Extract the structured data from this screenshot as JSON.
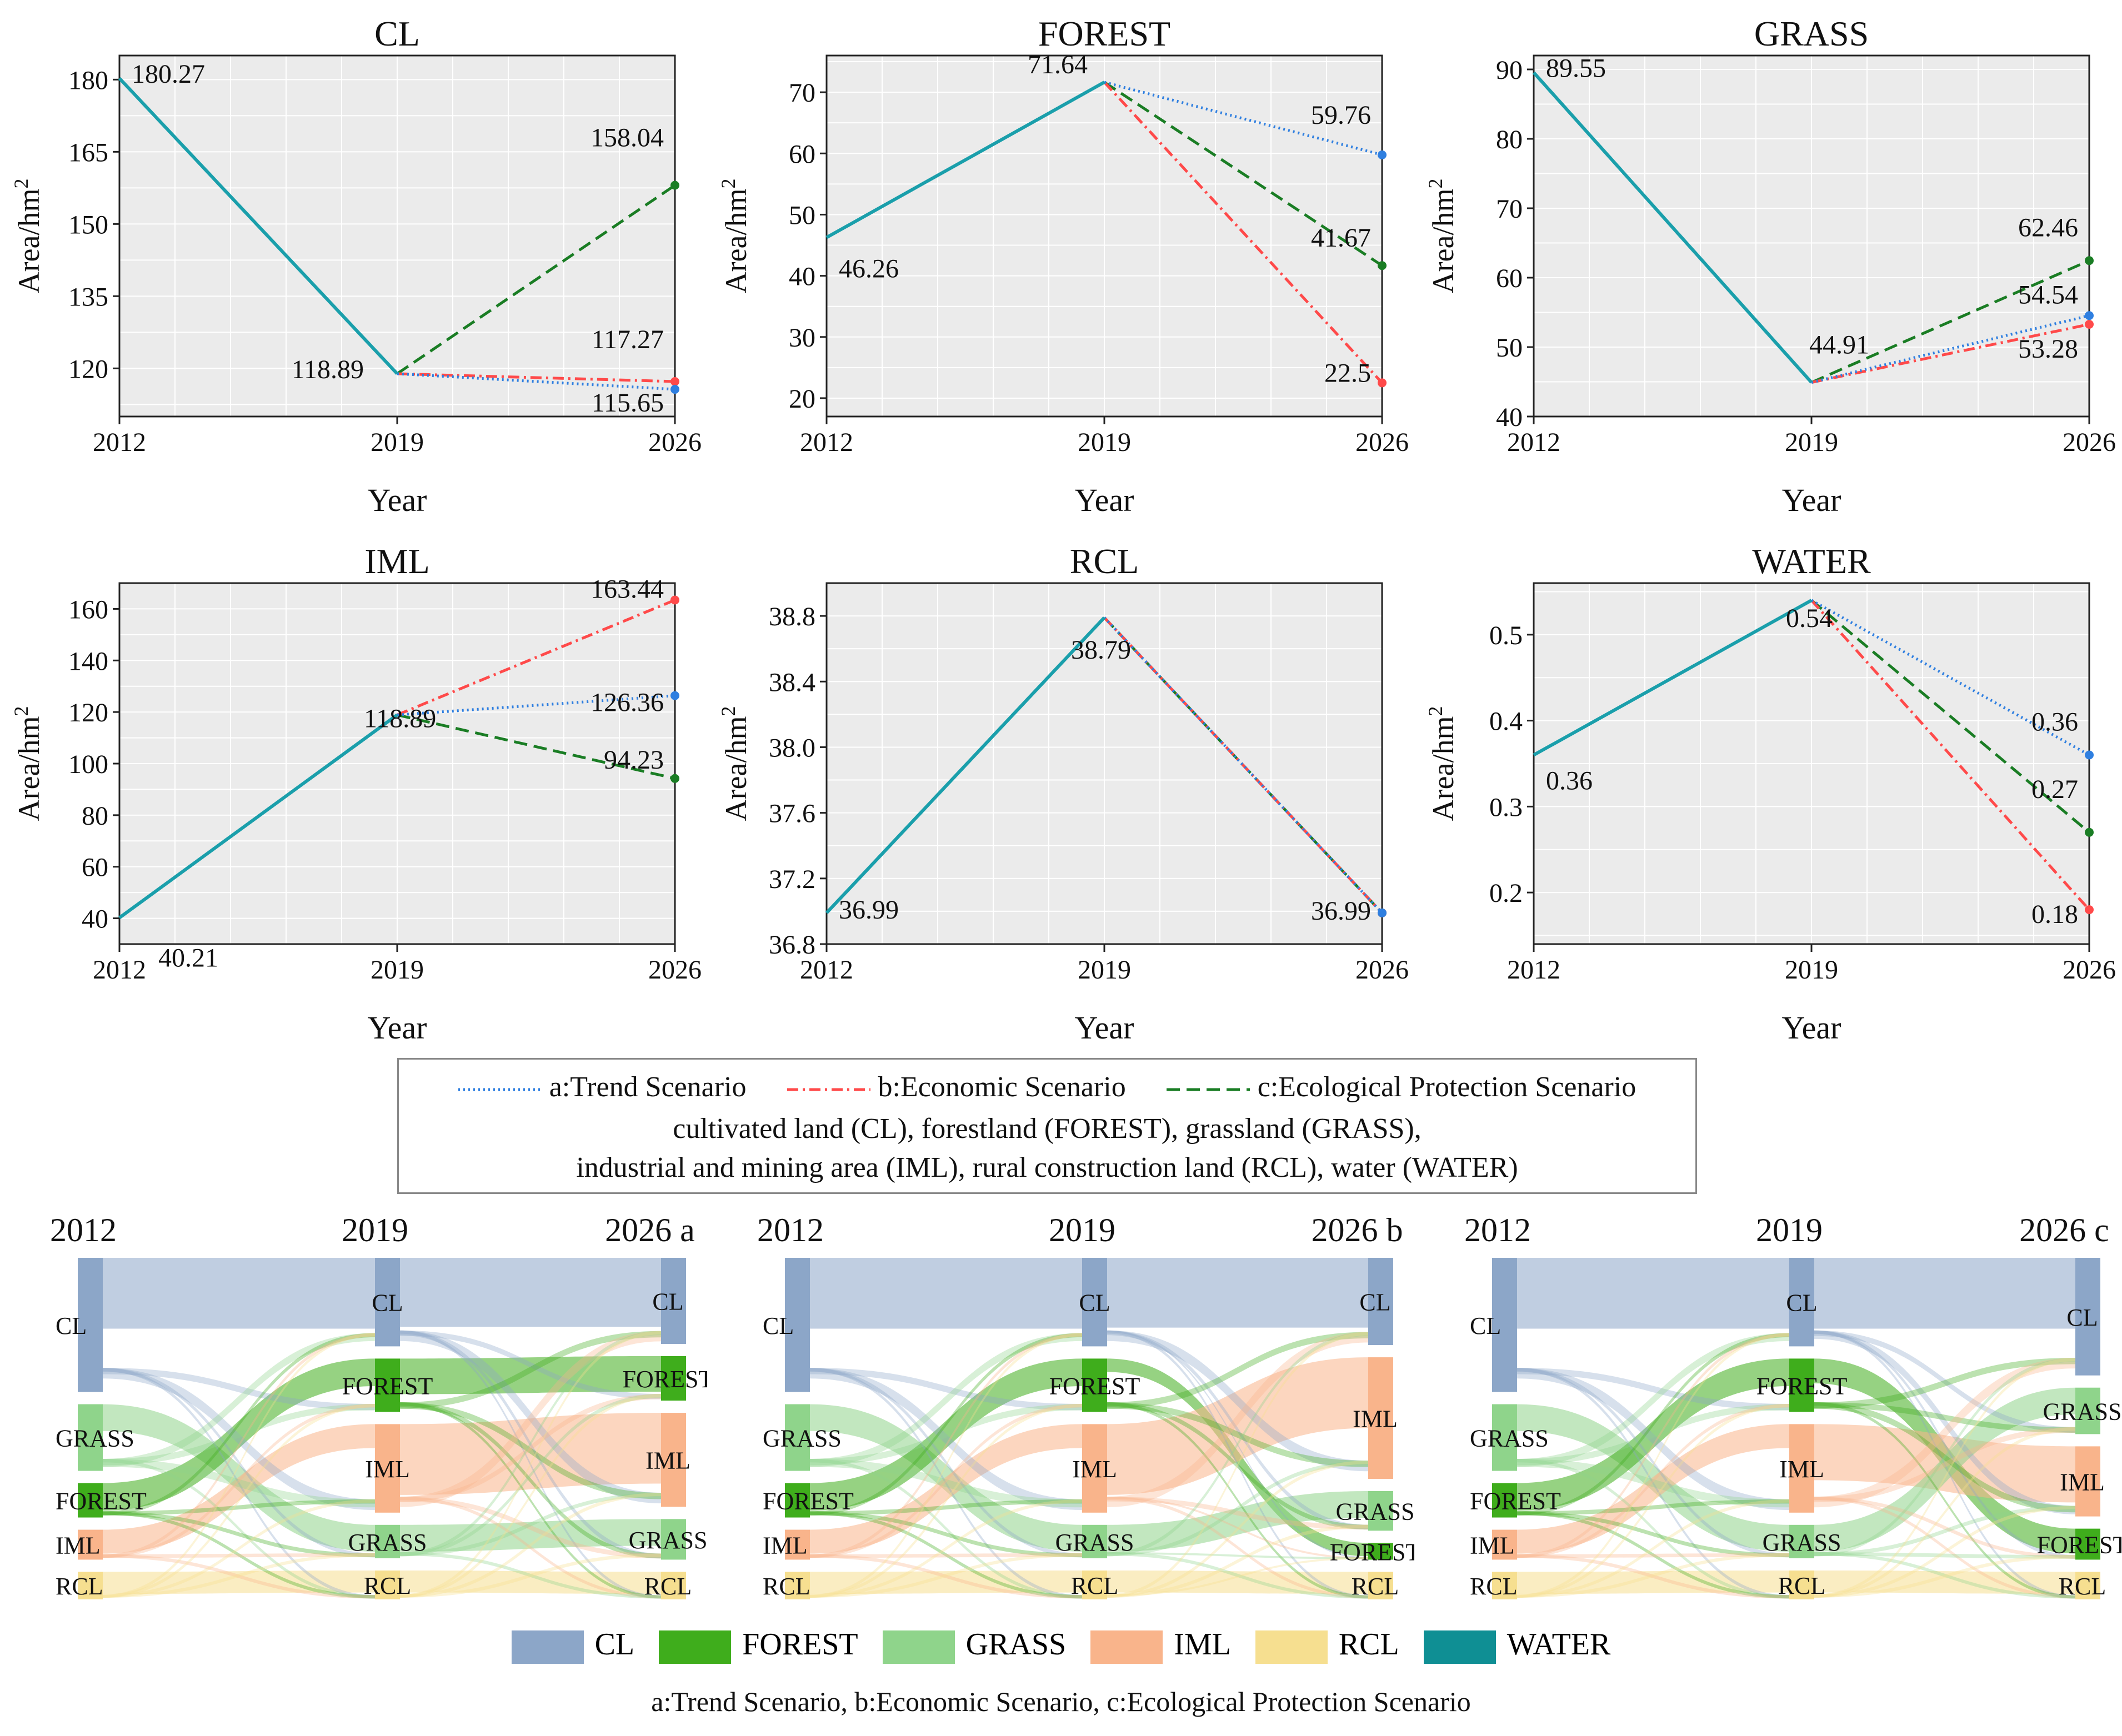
{
  "chart_data": [
    {
      "type": "line",
      "title": "CL",
      "xlabel": "Year",
      "ylabel": "Area/hm²",
      "ylabel_base": "Area/hm",
      "ylabel_sup": "2",
      "x": [
        "2012",
        "2019",
        "2026"
      ],
      "ylim": [
        110,
        185
      ],
      "yticks": [
        120,
        135,
        150,
        165,
        180
      ],
      "ytick_labels": [
        "120",
        "135",
        "150",
        "165",
        "180"
      ],
      "base": [
        180.27,
        118.89
      ],
      "scenarios": {
        "a": 115.65,
        "b": 117.27,
        "c": 158.04
      },
      "labels": [
        {
          "text": "180.27",
          "pt": 0
        },
        {
          "text": "118.89",
          "pt": 1
        },
        {
          "text": "158.04",
          "pt": "c"
        },
        {
          "text": "117.27",
          "pt": "b"
        },
        {
          "text": "115.65",
          "pt": "a"
        }
      ]
    },
    {
      "type": "line",
      "title": "FOREST",
      "xlabel": "Year",
      "ylabel": "Area/hm²",
      "ylabel_base": "Area/hm",
      "ylabel_sup": "2",
      "x": [
        "2012",
        "2019",
        "2026"
      ],
      "ylim": [
        17,
        76
      ],
      "yticks": [
        20,
        30,
        40,
        50,
        60,
        70
      ],
      "ytick_labels": [
        "20",
        "30",
        "40",
        "50",
        "60",
        "70"
      ],
      "base": [
        46.26,
        71.64
      ],
      "scenarios": {
        "a": 59.76,
        "b": 22.5,
        "c": 41.67
      },
      "labels": [
        {
          "text": "46.26",
          "pt": 0
        },
        {
          "text": "71.64",
          "pt": 1
        },
        {
          "text": "59.76",
          "pt": "a"
        },
        {
          "text": "41.67",
          "pt": "c"
        },
        {
          "text": "22.5",
          "pt": "b"
        }
      ]
    },
    {
      "type": "line",
      "title": "GRASS",
      "xlabel": "Year",
      "ylabel": "Area/hm²",
      "ylabel_base": "Area/hm",
      "ylabel_sup": "2",
      "x": [
        "2012",
        "2019",
        "2026"
      ],
      "ylim": [
        40,
        92
      ],
      "yticks": [
        40,
        50,
        60,
        70,
        80,
        90
      ],
      "ytick_labels": [
        "40",
        "50",
        "60",
        "70",
        "80",
        "90"
      ],
      "base": [
        89.55,
        44.91
      ],
      "scenarios": {
        "a": 54.54,
        "b": 53.28,
        "c": 62.46
      },
      "labels": [
        {
          "text": "89.55",
          "pt": 0
        },
        {
          "text": "44.91",
          "pt": 1
        },
        {
          "text": "62.46",
          "pt": "c"
        },
        {
          "text": "54.54",
          "pt": "a"
        },
        {
          "text": "53.28",
          "pt": "b"
        }
      ]
    },
    {
      "type": "line",
      "title": "IML",
      "xlabel": "Year",
      "ylabel": "Area/hm²",
      "ylabel_base": "Area/hm",
      "ylabel_sup": "2",
      "x": [
        "2012",
        "2019",
        "2026"
      ],
      "ylim": [
        30,
        170
      ],
      "yticks": [
        40,
        60,
        80,
        100,
        120,
        140,
        160
      ],
      "ytick_labels": [
        "40",
        "60",
        "80",
        "100",
        "120",
        "140",
        "160"
      ],
      "base": [
        40.21,
        118.89
      ],
      "scenarios": {
        "a": 126.36,
        "b": 163.44,
        "c": 94.23
      },
      "labels": [
        {
          "text": "40.21",
          "pt": 0
        },
        {
          "text": "118.89",
          "pt": 1
        },
        {
          "text": "163.44",
          "pt": "b"
        },
        {
          "text": "126.36",
          "pt": "a"
        },
        {
          "text": "94.23",
          "pt": "c"
        }
      ]
    },
    {
      "type": "line",
      "title": "RCL",
      "xlabel": "Year",
      "ylabel": "Area/hm²",
      "ylabel_base": "Area/hm",
      "ylabel_sup": "2",
      "x": [
        "2012",
        "2019",
        "2026"
      ],
      "ylim": [
        36.8,
        39.0
      ],
      "yticks": [
        36.8,
        37.2,
        37.6,
        38.0,
        38.4,
        38.8
      ],
      "ytick_labels": [
        "36.8",
        "37.2",
        "37.6",
        "38.0",
        "38.4",
        "38.8"
      ],
      "base": [
        36.99,
        38.79
      ],
      "scenarios": {
        "a": 36.99,
        "b": 36.99,
        "c": 36.99
      },
      "labels": [
        {
          "text": "36.99",
          "pt": 0
        },
        {
          "text": "38.79",
          "pt": 1
        },
        {
          "text": "36.99",
          "pt": "a"
        }
      ]
    },
    {
      "type": "line",
      "title": "WATER",
      "xlabel": "Year",
      "ylabel": "Area/hm²",
      "ylabel_base": "Area/hm",
      "ylabel_sup": "2",
      "x": [
        "2012",
        "2019",
        "2026"
      ],
      "ylim": [
        0.14,
        0.56
      ],
      "yticks": [
        0.2,
        0.3,
        0.4,
        0.5
      ],
      "ytick_labels": [
        "0.2",
        "0.3",
        "0.4",
        "0.5"
      ],
      "base": [
        0.36,
        0.54
      ],
      "scenarios": {
        "a": 0.36,
        "b": 0.18,
        "c": 0.27
      },
      "labels": [
        {
          "text": "0.36",
          "pt": 0
        },
        {
          "text": "0.54",
          "pt": 1
        },
        {
          "text": "0.36",
          "pt": "a"
        },
        {
          "text": "0.27",
          "pt": "c"
        },
        {
          "text": "0.18",
          "pt": "b"
        }
      ]
    }
  ],
  "colors": {
    "base": "#1a9fab",
    "a": "#2f7fe0",
    "b": "#ff4a4a",
    "c": "#1a7d24",
    "plot_bg": "#ebebeb",
    "grid": "#ffffff"
  },
  "scenario_legend": {
    "a": "a:Trend Scenario",
    "b": "b:Economic Scenario",
    "c": "c:Ecological Protection Scenario",
    "line2": "cultivated land (CL), forestland (FOREST), grassland (GRASS),",
    "line3": "industrial and mining area (IML), rural construction land (RCL), water (WATER)"
  },
  "sankey_data": [
    {
      "col_years": [
        "2012",
        "2019",
        "2026 a"
      ],
      "columns": [
        [
          {
            "name": "CL",
            "value": 180.27
          },
          {
            "name": "GRASS",
            "value": 89.55
          },
          {
            "name": "FOREST",
            "value": 46.26
          },
          {
            "name": "IML",
            "value": 40.21
          },
          {
            "name": "RCL",
            "value": 36.99
          }
        ],
        [
          {
            "name": "CL",
            "value": 118.89
          },
          {
            "name": "FOREST",
            "value": 71.64
          },
          {
            "name": "IML",
            "value": 118.89
          },
          {
            "name": "GRASS",
            "value": 44.91
          },
          {
            "name": "RCL",
            "value": 38.79
          }
        ],
        [
          {
            "name": "CL",
            "value": 115.65
          },
          {
            "name": "FOREST",
            "value": 59.76
          },
          {
            "name": "IML",
            "value": 126.36
          },
          {
            "name": "GRASS",
            "value": 54.54
          },
          {
            "name": "RCL",
            "value": 36.99
          }
        ]
      ]
    },
    {
      "col_years": [
        "2012",
        "2019",
        "2026 b"
      ],
      "columns": [
        [
          {
            "name": "CL",
            "value": 180.27
          },
          {
            "name": "GRASS",
            "value": 89.55
          },
          {
            "name": "FOREST",
            "value": 46.26
          },
          {
            "name": "IML",
            "value": 40.21
          },
          {
            "name": "RCL",
            "value": 36.99
          }
        ],
        [
          {
            "name": "CL",
            "value": 118.89
          },
          {
            "name": "FOREST",
            "value": 71.64
          },
          {
            "name": "IML",
            "value": 118.89
          },
          {
            "name": "GRASS",
            "value": 44.91
          },
          {
            "name": "RCL",
            "value": 38.79
          }
        ],
        [
          {
            "name": "CL",
            "value": 117.27
          },
          {
            "name": "IML",
            "value": 163.44
          },
          {
            "name": "GRASS",
            "value": 53.28
          },
          {
            "name": "FOREST",
            "value": 22.5
          },
          {
            "name": "RCL",
            "value": 36.99
          }
        ]
      ]
    },
    {
      "col_years": [
        "2012",
        "2019",
        "2026 c"
      ],
      "columns": [
        [
          {
            "name": "CL",
            "value": 180.27
          },
          {
            "name": "GRASS",
            "value": 89.55
          },
          {
            "name": "FOREST",
            "value": 46.26
          },
          {
            "name": "IML",
            "value": 40.21
          },
          {
            "name": "RCL",
            "value": 36.99
          }
        ],
        [
          {
            "name": "CL",
            "value": 118.89
          },
          {
            "name": "FOREST",
            "value": 71.64
          },
          {
            "name": "IML",
            "value": 118.89
          },
          {
            "name": "GRASS",
            "value": 44.91
          },
          {
            "name": "RCL",
            "value": 38.79
          }
        ],
        [
          {
            "name": "CL",
            "value": 158.04
          },
          {
            "name": "GRASS",
            "value": 62.46
          },
          {
            "name": "IML",
            "value": 94.23
          },
          {
            "name": "FOREST",
            "value": 41.67
          },
          {
            "name": "RCL",
            "value": 36.99
          }
        ]
      ]
    }
  ],
  "landuse_colors": {
    "CL": "#8ca6c8",
    "FOREST": "#3fad1c",
    "GRASS": "#8fd48b",
    "IML": "#f9b48b",
    "RCL": "#f6df90",
    "WATER": "#0f8f94"
  },
  "landuse_legend": [
    {
      "name": "CL",
      "color": "#8ca6c8"
    },
    {
      "name": "FOREST",
      "color": "#3fad1c"
    },
    {
      "name": "GRASS",
      "color": "#8fd48b"
    },
    {
      "name": "IML",
      "color": "#f9b48b"
    },
    {
      "name": "RCL",
      "color": "#f6df90"
    },
    {
      "name": "WATER",
      "color": "#0f8f94"
    }
  ],
  "bottom_caption": "a:Trend Scenario, b:Economic Scenario, c:Ecological Protection Scenario"
}
